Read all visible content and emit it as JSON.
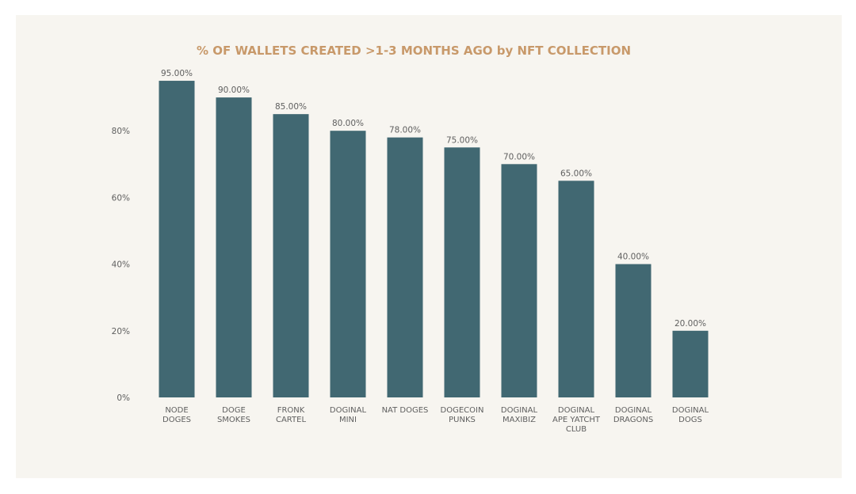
{
  "colors": {
    "bar": "#416872",
    "title": "#c8996a",
    "panel": "#f7f5f0"
  },
  "chart_data": {
    "type": "bar",
    "title": "% OF WALLETS CREATED >1-3 MONTHS AGO by NFT COLLECTION",
    "xlabel": "",
    "ylabel": "",
    "categories": [
      [
        "NODE",
        "DOGES"
      ],
      [
        "DOGE",
        "SMOKES"
      ],
      [
        "FRONK",
        "CARTEL"
      ],
      [
        "DOGINAL",
        "MINI"
      ],
      [
        "NAT DOGES"
      ],
      [
        "DOGECOIN",
        "PUNKS"
      ],
      [
        "DOGINAL",
        "MAXIBIZ"
      ],
      [
        "DOGINAL",
        "APE YATCHT",
        "CLUB"
      ],
      [
        "DOGINAL",
        "DRAGONS"
      ],
      [
        "DOGINAL",
        "DOGS"
      ]
    ],
    "values": [
      95,
      90,
      85,
      80,
      78,
      75,
      70,
      65,
      40,
      20
    ],
    "data_labels": [
      "95.00%",
      "90.00%",
      "85.00%",
      "80.00%",
      "78.00%",
      "75.00%",
      "70.00%",
      "65.00%",
      "40.00%",
      "20.00%"
    ],
    "yticks": [
      0,
      20,
      40,
      60,
      80
    ],
    "ytick_labels": [
      "0%",
      "20%",
      "40%",
      "60%",
      "80%"
    ],
    "ylim": [
      0,
      100
    ],
    "grid": false
  }
}
